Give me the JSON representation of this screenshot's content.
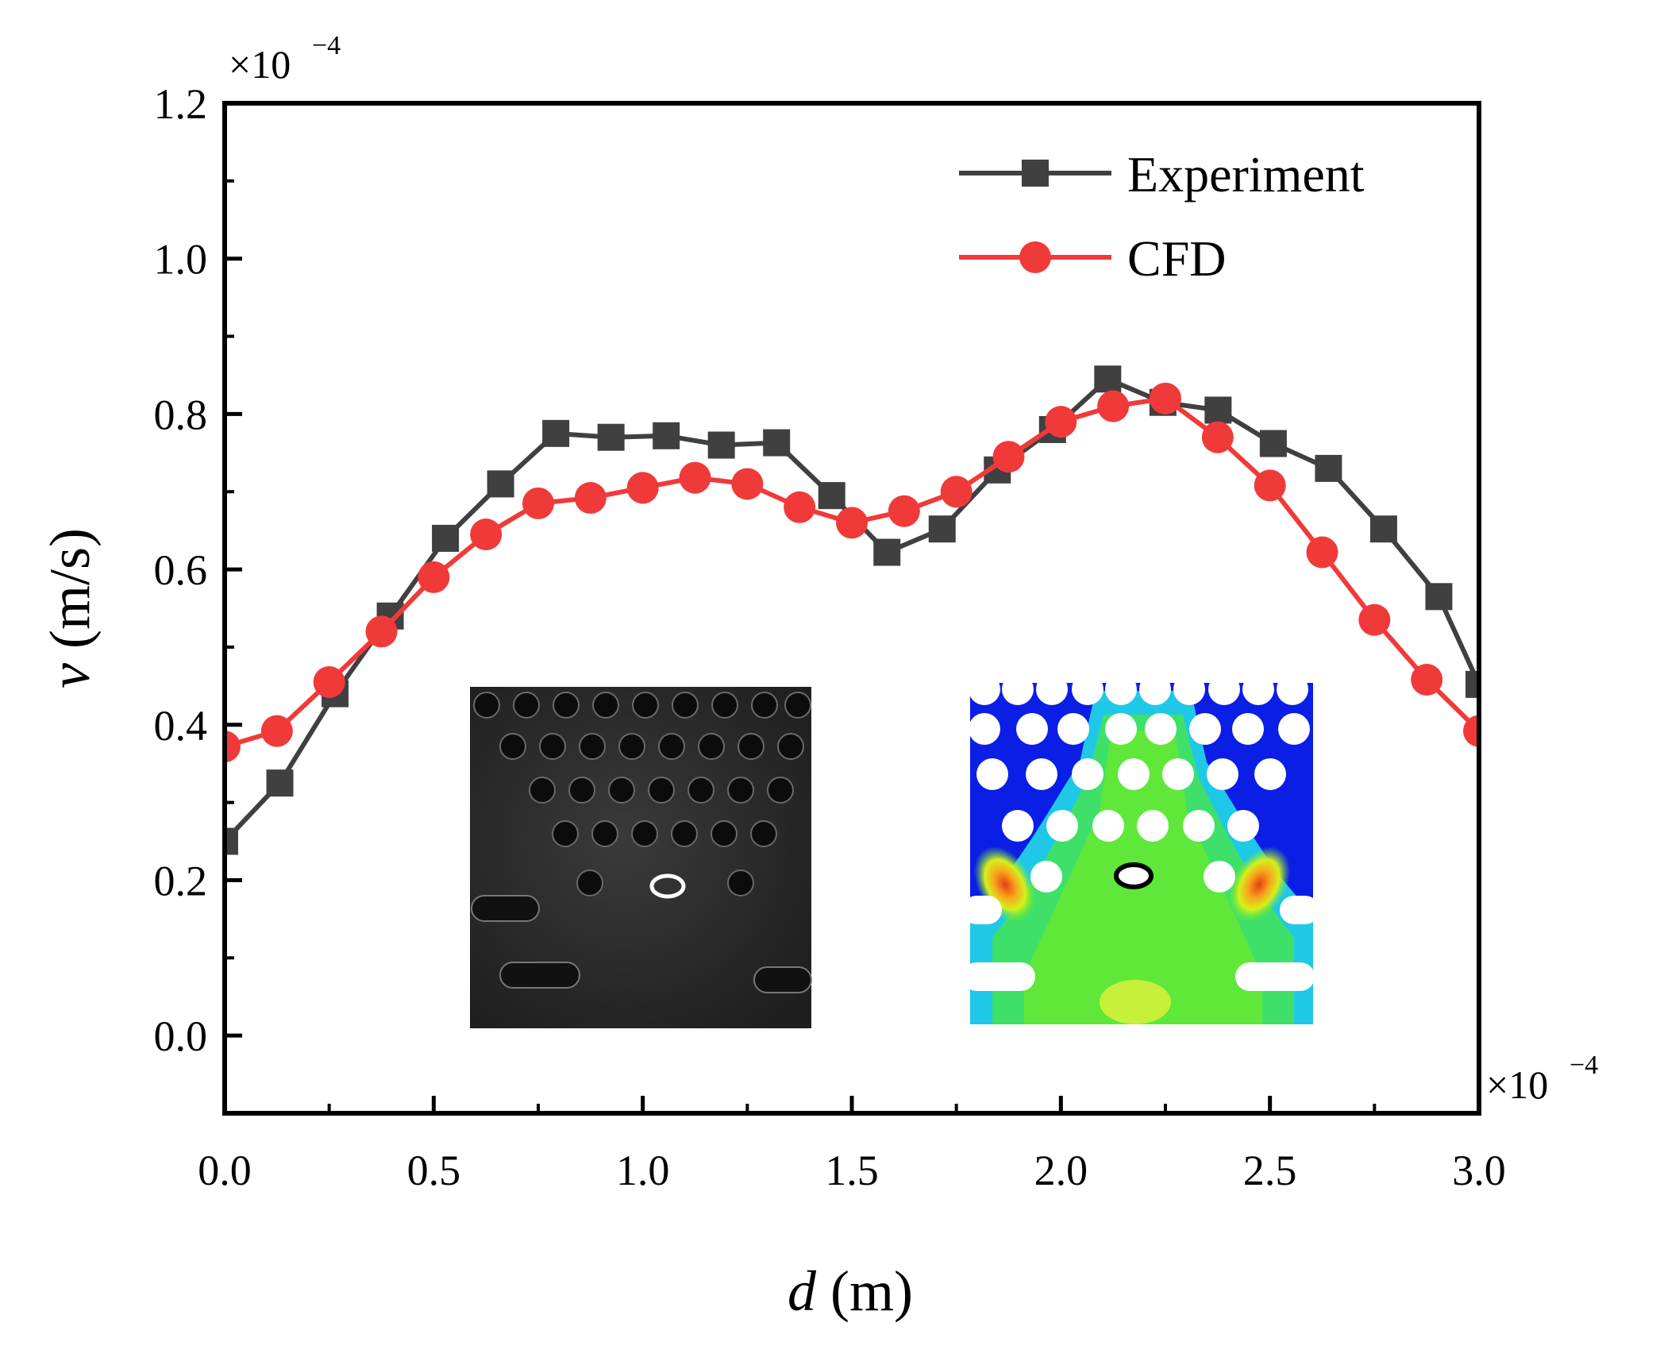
{
  "chart_data": {
    "type": "line",
    "title": "",
    "xlabel_italic": "d",
    "xlabel_unit": "(m)",
    "ylabel_italic": "v",
    "ylabel_unit": "(m/s)",
    "x_exponent_label": "×10",
    "x_exponent_power": "−4",
    "y_exponent_label": "×10",
    "y_exponent_power": "−4",
    "xlim": [
      0,
      3.0
    ],
    "ylim": [
      -0.1,
      1.2
    ],
    "x_ticks": [
      0.0,
      0.5,
      1.0,
      1.5,
      2.0,
      2.5,
      3.0
    ],
    "x_tick_labels": [
      "0.0",
      "0.5",
      "1.0",
      "1.5",
      "2.0",
      "2.5",
      "3.0"
    ],
    "y_ticks": [
      0.0,
      0.2,
      0.4,
      0.6,
      0.8,
      1.0,
      1.2
    ],
    "y_tick_labels": [
      "0.0",
      "0.2",
      "0.4",
      "0.6",
      "0.8",
      "1.0",
      "1.2"
    ],
    "grid": false,
    "legend_position": "top-right",
    "series": [
      {
        "name": "Experiment",
        "color": "#404040",
        "marker": "square",
        "x": [
          0.0,
          0.132,
          0.264,
          0.396,
          0.528,
          0.66,
          0.792,
          0.924,
          1.056,
          1.188,
          1.32,
          1.452,
          1.584,
          1.716,
          1.848,
          1.98,
          2.112,
          2.244,
          2.376,
          2.508,
          2.64,
          2.772,
          2.904,
          3.0
        ],
        "y": [
          0.25,
          0.325,
          0.44,
          0.54,
          0.64,
          0.71,
          0.775,
          0.77,
          0.772,
          0.76,
          0.763,
          0.695,
          0.622,
          0.652,
          0.728,
          0.78,
          0.845,
          0.815,
          0.805,
          0.762,
          0.73,
          0.652,
          0.565,
          0.452
        ]
      },
      {
        "name": "CFD",
        "color": "#f03a3a",
        "marker": "circle",
        "x": [
          0.0,
          0.125,
          0.25,
          0.375,
          0.5,
          0.625,
          0.75,
          0.875,
          1.0,
          1.125,
          1.25,
          1.375,
          1.5,
          1.625,
          1.75,
          1.875,
          2.0,
          2.125,
          2.25,
          2.375,
          2.5,
          2.625,
          2.75,
          2.875,
          3.0
        ],
        "y": [
          0.372,
          0.392,
          0.455,
          0.52,
          0.59,
          0.645,
          0.685,
          0.692,
          0.705,
          0.718,
          0.71,
          0.68,
          0.66,
          0.675,
          0.7,
          0.745,
          0.79,
          0.81,
          0.82,
          0.77,
          0.708,
          0.622,
          0.535,
          0.458,
          0.392
        ]
      }
    ],
    "insets": [
      "experimental micrograph of pore array",
      "CFD velocity contour of pore array"
    ]
  }
}
